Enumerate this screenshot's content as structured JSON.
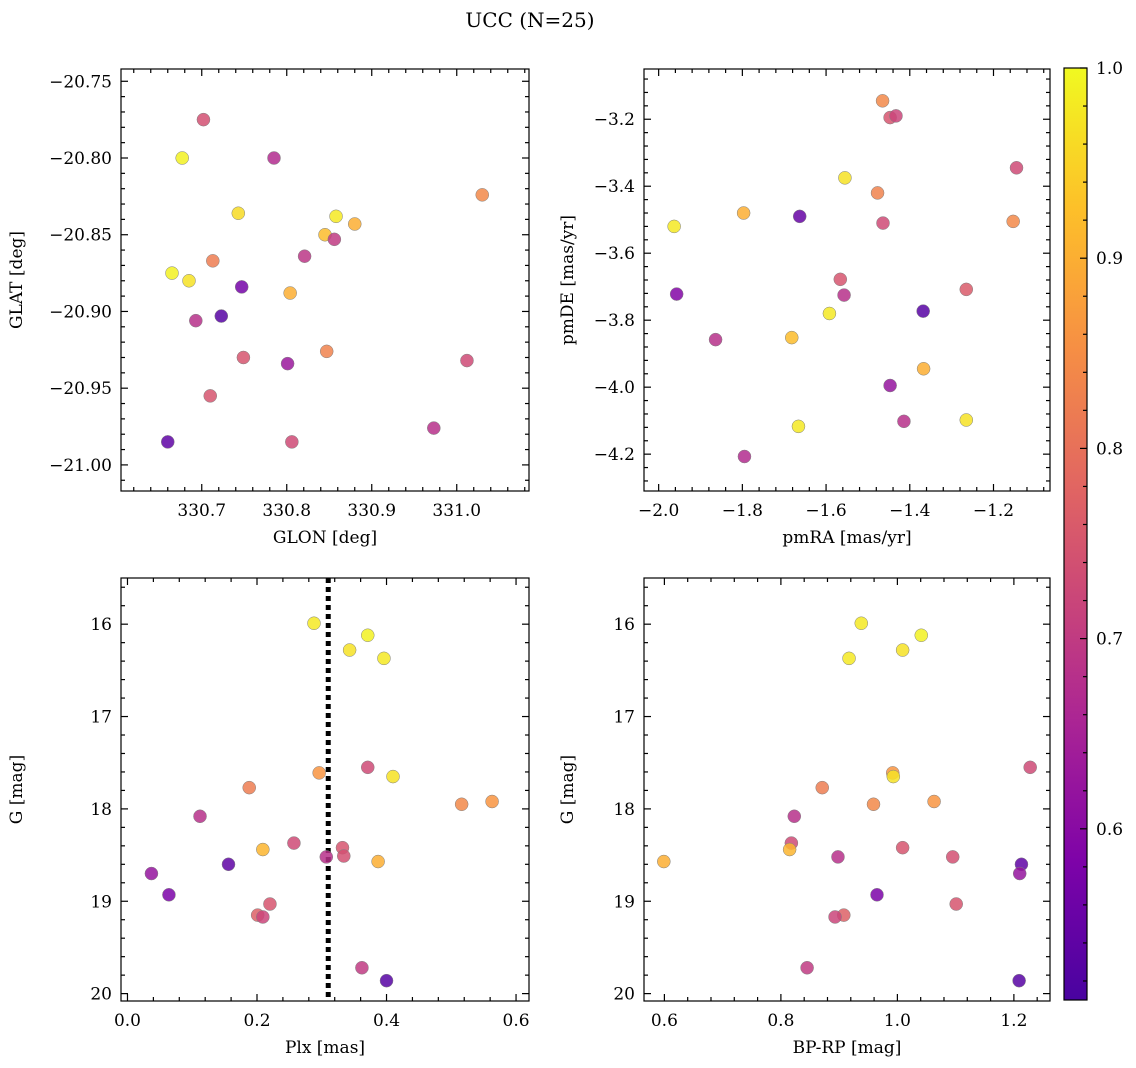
{
  "figure": {
    "title": "UCC (N=25)"
  },
  "colorbar": {
    "colormap": "plasma",
    "range": [
      0.51,
      1.0
    ],
    "ticks": [
      0.6,
      0.7,
      0.8,
      0.9,
      1.0
    ],
    "tick_labels": [
      "0.6",
      "0.7",
      "0.8",
      "0.9",
      "1.0"
    ]
  },
  "chart_data": [
    {
      "type": "scatter",
      "xlabel": "GLON [deg]",
      "ylabel": "GLAT [deg]",
      "xlim": [
        330.605,
        331.085
      ],
      "ylim": [
        -21.017,
        -20.742
      ],
      "xticks": [
        330.7,
        330.8,
        330.9,
        331.0
      ],
      "xtick_labels": [
        "330.7",
        "330.8",
        "330.9",
        "331.0"
      ],
      "yticks": [
        -20.75,
        -20.8,
        -20.85,
        -20.9,
        -20.95,
        -21.0
      ],
      "ytick_labels": [
        "−20.75",
        "−20.80",
        "−20.85",
        "−20.90",
        "−20.95",
        "−21.00"
      ],
      "points": [
        {
          "x": 330.702,
          "y": -20.775,
          "c": 0.74
        },
        {
          "x": 330.677,
          "y": -20.8,
          "c": 0.99
        },
        {
          "x": 330.785,
          "y": -20.8,
          "c": 0.67
        },
        {
          "x": 331.03,
          "y": -20.824,
          "c": 0.84
        },
        {
          "x": 330.743,
          "y": -20.836,
          "c": 0.96
        },
        {
          "x": 330.858,
          "y": -20.838,
          "c": 0.98
        },
        {
          "x": 330.88,
          "y": -20.843,
          "c": 0.9
        },
        {
          "x": 330.845,
          "y": -20.85,
          "c": 0.92
        },
        {
          "x": 330.856,
          "y": -20.853,
          "c": 0.7
        },
        {
          "x": 330.665,
          "y": -20.875,
          "c": 0.99
        },
        {
          "x": 330.685,
          "y": -20.88,
          "c": 0.97
        },
        {
          "x": 330.713,
          "y": -20.867,
          "c": 0.82
        },
        {
          "x": 330.821,
          "y": -20.864,
          "c": 0.69
        },
        {
          "x": 330.747,
          "y": -20.884,
          "c": 0.57
        },
        {
          "x": 330.804,
          "y": -20.888,
          "c": 0.9
        },
        {
          "x": 330.693,
          "y": -20.906,
          "c": 0.68
        },
        {
          "x": 330.723,
          "y": -20.903,
          "c": 0.53
        },
        {
          "x": 330.749,
          "y": -20.93,
          "c": 0.75
        },
        {
          "x": 330.801,
          "y": -20.934,
          "c": 0.63
        },
        {
          "x": 330.847,
          "y": -20.926,
          "c": 0.83
        },
        {
          "x": 331.012,
          "y": -20.932,
          "c": 0.73
        },
        {
          "x": 330.71,
          "y": -20.955,
          "c": 0.75
        },
        {
          "x": 330.66,
          "y": -20.985,
          "c": 0.54
        },
        {
          "x": 330.806,
          "y": -20.985,
          "c": 0.73
        },
        {
          "x": 330.973,
          "y": -20.976,
          "c": 0.68
        }
      ]
    },
    {
      "type": "scatter",
      "xlabel": "pmRA [mas/yr]",
      "ylabel": "pmDE [mas/yr]",
      "xlim": [
        -2.035,
        -1.065
      ],
      "ylim": [
        -4.31,
        -3.05
      ],
      "xticks": [
        -2.0,
        -1.8,
        -1.6,
        -1.4,
        -1.2
      ],
      "xtick_labels": [
        "−2.0",
        "−1.8",
        "−1.6",
        "−1.4",
        "−1.2"
      ],
      "yticks": [
        -3.2,
        -3.4,
        -3.6,
        -3.8,
        -4.0,
        -4.2
      ],
      "ytick_labels": [
        "−3.2",
        "−3.4",
        "−3.6",
        "−3.8",
        "−4.0",
        "−4.2"
      ],
      "points": [
        {
          "x": -1.465,
          "y": -3.145,
          "c": 0.84
        },
        {
          "x": -1.447,
          "y": -3.195,
          "c": 0.75
        },
        {
          "x": -1.433,
          "y": -3.19,
          "c": 0.72
        },
        {
          "x": -1.145,
          "y": -3.345,
          "c": 0.73
        },
        {
          "x": -1.555,
          "y": -3.375,
          "c": 0.97
        },
        {
          "x": -1.477,
          "y": -3.42,
          "c": 0.83
        },
        {
          "x": -1.797,
          "y": -3.48,
          "c": 0.9
        },
        {
          "x": -1.663,
          "y": -3.49,
          "c": 0.55
        },
        {
          "x": -1.464,
          "y": -3.51,
          "c": 0.73
        },
        {
          "x": -1.153,
          "y": -3.505,
          "c": 0.84
        },
        {
          "x": -1.963,
          "y": -3.52,
          "c": 0.98
        },
        {
          "x": -1.566,
          "y": -3.678,
          "c": 0.75
        },
        {
          "x": -1.557,
          "y": -3.725,
          "c": 0.68
        },
        {
          "x": -1.957,
          "y": -3.722,
          "c": 0.59
        },
        {
          "x": -1.265,
          "y": -3.708,
          "c": 0.76
        },
        {
          "x": -1.368,
          "y": -3.773,
          "c": 0.53
        },
        {
          "x": -1.592,
          "y": -3.78,
          "c": 0.98
        },
        {
          "x": -1.682,
          "y": -3.852,
          "c": 0.92
        },
        {
          "x": -1.864,
          "y": -3.858,
          "c": 0.68
        },
        {
          "x": -1.367,
          "y": -3.945,
          "c": 0.9
        },
        {
          "x": -1.447,
          "y": -3.995,
          "c": 0.62
        },
        {
          "x": -1.666,
          "y": -4.117,
          "c": 0.98
        },
        {
          "x": -1.414,
          "y": -4.102,
          "c": 0.68
        },
        {
          "x": -1.265,
          "y": -4.098,
          "c": 0.97
        },
        {
          "x": -1.795,
          "y": -4.207,
          "c": 0.67
        }
      ]
    },
    {
      "type": "scatter",
      "xlabel": "Plx [mas]",
      "ylabel": "G [mag]",
      "xlim": [
        -0.01,
        0.62
      ],
      "ylim": [
        20.08,
        15.5
      ],
      "xticks": [
        0.0,
        0.2,
        0.4,
        0.6
      ],
      "xtick_labels": [
        "0.0",
        "0.2",
        "0.4",
        "0.6"
      ],
      "yticks": [
        16,
        17,
        18,
        19,
        20
      ],
      "ytick_labels": [
        "16",
        "17",
        "18",
        "19",
        "20"
      ],
      "vline": 0.31,
      "points": [
        {
          "x": 0.288,
          "y": 15.99,
          "c": 0.98
        },
        {
          "x": 0.371,
          "y": 16.12,
          "c": 0.99
        },
        {
          "x": 0.343,
          "y": 16.28,
          "c": 0.97
        },
        {
          "x": 0.396,
          "y": 16.37,
          "c": 0.98
        },
        {
          "x": 0.371,
          "y": 17.55,
          "c": 0.73
        },
        {
          "x": 0.41,
          "y": 17.65,
          "c": 0.97
        },
        {
          "x": 0.296,
          "y": 17.61,
          "c": 0.86
        },
        {
          "x": 0.188,
          "y": 17.77,
          "c": 0.82
        },
        {
          "x": 0.516,
          "y": 17.95,
          "c": 0.84
        },
        {
          "x": 0.563,
          "y": 17.92,
          "c": 0.86
        },
        {
          "x": 0.112,
          "y": 18.08,
          "c": 0.68
        },
        {
          "x": 0.209,
          "y": 18.44,
          "c": 0.91
        },
        {
          "x": 0.257,
          "y": 18.37,
          "c": 0.73
        },
        {
          "x": 0.332,
          "y": 18.42,
          "c": 0.75
        },
        {
          "x": 0.334,
          "y": 18.51,
          "c": 0.74
        },
        {
          "x": 0.307,
          "y": 18.52,
          "c": 0.68
        },
        {
          "x": 0.387,
          "y": 18.57,
          "c": 0.9
        },
        {
          "x": 0.156,
          "y": 18.6,
          "c": 0.54
        },
        {
          "x": 0.037,
          "y": 18.7,
          "c": 0.62
        },
        {
          "x": 0.064,
          "y": 18.93,
          "c": 0.58
        },
        {
          "x": 0.22,
          "y": 19.03,
          "c": 0.75
        },
        {
          "x": 0.201,
          "y": 19.15,
          "c": 0.77
        },
        {
          "x": 0.209,
          "y": 19.17,
          "c": 0.72
        },
        {
          "x": 0.362,
          "y": 19.72,
          "c": 0.7
        },
        {
          "x": 0.4,
          "y": 19.86,
          "c": 0.53
        }
      ]
    },
    {
      "type": "scatter",
      "xlabel": "BP-RP [mag]",
      "ylabel": "G [mag]",
      "xlim": [
        0.565,
        1.262
      ],
      "ylim": [
        20.08,
        15.5
      ],
      "xticks": [
        0.6,
        0.8,
        1.0,
        1.2
      ],
      "xtick_labels": [
        "0.6",
        "0.8",
        "1.0",
        "1.2"
      ],
      "yticks": [
        16,
        17,
        18,
        19,
        20
      ],
      "ytick_labels": [
        "16",
        "17",
        "18",
        "19",
        "20"
      ],
      "points": [
        {
          "x": 0.938,
          "y": 15.99,
          "c": 0.98
        },
        {
          "x": 1.041,
          "y": 16.12,
          "c": 0.99
        },
        {
          "x": 1.009,
          "y": 16.28,
          "c": 0.97
        },
        {
          "x": 0.917,
          "y": 16.37,
          "c": 0.98
        },
        {
          "x": 1.228,
          "y": 17.55,
          "c": 0.73
        },
        {
          "x": 0.992,
          "y": 17.61,
          "c": 0.86
        },
        {
          "x": 0.993,
          "y": 17.65,
          "c": 0.97
        },
        {
          "x": 0.871,
          "y": 17.77,
          "c": 0.82
        },
        {
          "x": 0.959,
          "y": 17.95,
          "c": 0.84
        },
        {
          "x": 1.063,
          "y": 17.92,
          "c": 0.86
        },
        {
          "x": 0.823,
          "y": 18.08,
          "c": 0.68
        },
        {
          "x": 0.818,
          "y": 18.37,
          "c": 0.73
        },
        {
          "x": 0.815,
          "y": 18.44,
          "c": 0.91
        },
        {
          "x": 1.009,
          "y": 18.42,
          "c": 0.75
        },
        {
          "x": 0.898,
          "y": 18.52,
          "c": 0.68
        },
        {
          "x": 1.095,
          "y": 18.52,
          "c": 0.74
        },
        {
          "x": 0.599,
          "y": 18.57,
          "c": 0.9
        },
        {
          "x": 1.213,
          "y": 18.6,
          "c": 0.54
        },
        {
          "x": 1.21,
          "y": 18.7,
          "c": 0.62
        },
        {
          "x": 0.965,
          "y": 18.93,
          "c": 0.58
        },
        {
          "x": 1.101,
          "y": 19.03,
          "c": 0.75
        },
        {
          "x": 0.908,
          "y": 19.15,
          "c": 0.77
        },
        {
          "x": 0.893,
          "y": 19.17,
          "c": 0.72
        },
        {
          "x": 0.845,
          "y": 19.72,
          "c": 0.7
        },
        {
          "x": 1.209,
          "y": 19.86,
          "c": 0.53
        }
      ]
    }
  ]
}
